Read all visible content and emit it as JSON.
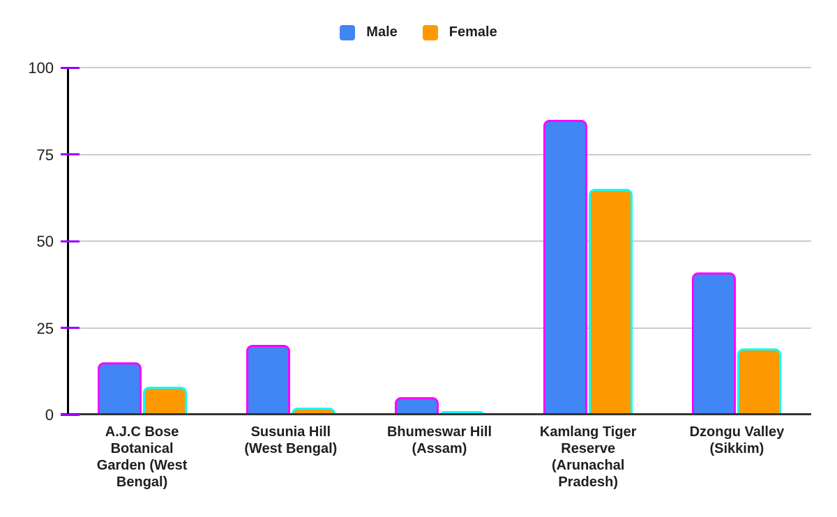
{
  "chart_data": {
    "type": "bar",
    "title": "",
    "xlabel": "",
    "ylabel": "",
    "categories": [
      "A.J.C Bose Botanical Garden (West Bengal)",
      "Susunia Hill (West Bengal)",
      "Bhumeswar Hill (Assam)",
      "Kamlang Tiger Reserve (Arunachal Pradesh)",
      "Dzongu Valley (Sikkim)"
    ],
    "category_label_lines": [
      [
        "A.J.C Bose",
        "Botanical",
        "Garden (West",
        "Bengal)"
      ],
      [
        "Susunia Hill",
        "(West Bengal)"
      ],
      [
        "Bhumeswar Hill",
        "(Assam)"
      ],
      [
        "Kamlang Tiger",
        "Reserve",
        "(Arunachal",
        "Pradesh)"
      ],
      [
        "Dzongu Valley",
        "(Sikkim)"
      ]
    ],
    "series": [
      {
        "name": "Male",
        "color": "#4285f4",
        "border_color": "#ff00ff",
        "values": [
          15,
          20,
          5,
          85,
          41
        ]
      },
      {
        "name": "Female",
        "color": "#ff9900",
        "border_color": "#00ffff",
        "values": [
          8,
          2,
          1,
          65,
          19
        ]
      }
    ],
    "ylim": [
      0,
      100
    ],
    "y_ticks": [
      0,
      25,
      50,
      75,
      100
    ],
    "grid": true,
    "legend_position": "top-center",
    "axis_colors": {
      "tick_mark": "#9900ff",
      "y_axis_line": "#000000",
      "x_axis_line": "#333333",
      "gridline": "#cccccc",
      "label_text": "#1f1f1f"
    }
  }
}
